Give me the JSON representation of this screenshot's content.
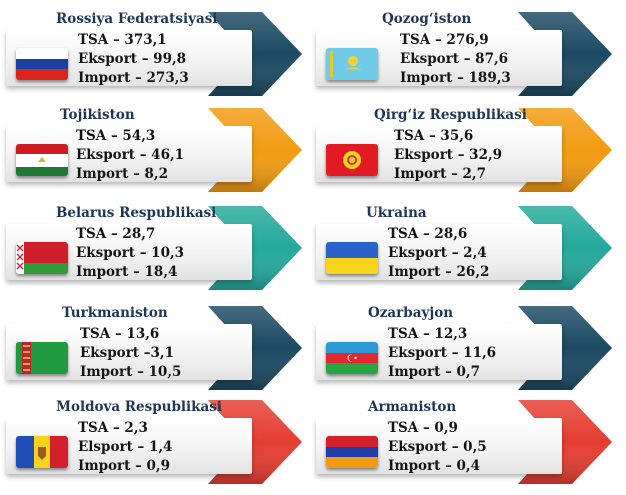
{
  "countries": [
    {
      "name": "Rossiya Federatsiyasi",
      "flag": "russia-flag",
      "arrow_color": "#1b4a63",
      "stats": [
        "TSA – 373,1",
        "Eksport – 99,8",
        "Import – 273,3"
      ]
    },
    {
      "name": "Qozog‘iston",
      "flag": "kazakhstan-flag",
      "arrow_color": "#1b4a63",
      "stats": [
        "TSA – 276,9",
        "Eksport – 87,6",
        "Import – 189,3"
      ]
    },
    {
      "name": "Tojikiston",
      "flag": "tajikistan-flag",
      "arrow_color": "#f29b12",
      "stats": [
        "TSA – 54,3",
        "Eksport – 46,1",
        "Import – 8,2"
      ]
    },
    {
      "name": "Qirg‘iz Respublikasi",
      "flag": "kyrgyzstan-flag",
      "arrow_color": "#f29b12",
      "stats": [
        "TSA – 35,6",
        "Eksport – 32,9",
        "Import – 2,7"
      ]
    },
    {
      "name": "Belarus Respublikasi",
      "flag": "belarus-flag",
      "arrow_color": "#24a99b",
      "stats": [
        "TSA – 28,7",
        "Eksport – 10,3",
        "Import – 18,4"
      ]
    },
    {
      "name": "Ukraina",
      "flag": "ukraine-flag",
      "arrow_color": "#24a99b",
      "stats": [
        "TSA – 28,6",
        "Eksport – 2,4",
        "Import – 26,2"
      ]
    },
    {
      "name": "Turkmaniston",
      "flag": "turkmenistan-flag",
      "arrow_color": "#1b4a63",
      "stats": [
        "TSA – 13,6",
        "Eksport –3,1",
        "Import – 10,5"
      ]
    },
    {
      "name": "Ozarbayjon",
      "flag": "azerbaijan-flag",
      "arrow_color": "#1b4a63",
      "stats": [
        "TSA – 12,3",
        "Eksport – 11,6",
        "Import – 0,7"
      ]
    },
    {
      "name": "Moldova Respublikasi",
      "flag": "moldova-flag",
      "arrow_color": "#e53d31",
      "stats": [
        "TSA – 2,3",
        "Elsport – 1,4",
        "Import – 0,9"
      ]
    },
    {
      "name": "Armaniston",
      "flag": "armenia-flag",
      "arrow_color": "#e53d31",
      "stats": [
        "TSA – 0,9",
        "Eksport – 0,5",
        "Import – 0,4"
      ]
    }
  ]
}
